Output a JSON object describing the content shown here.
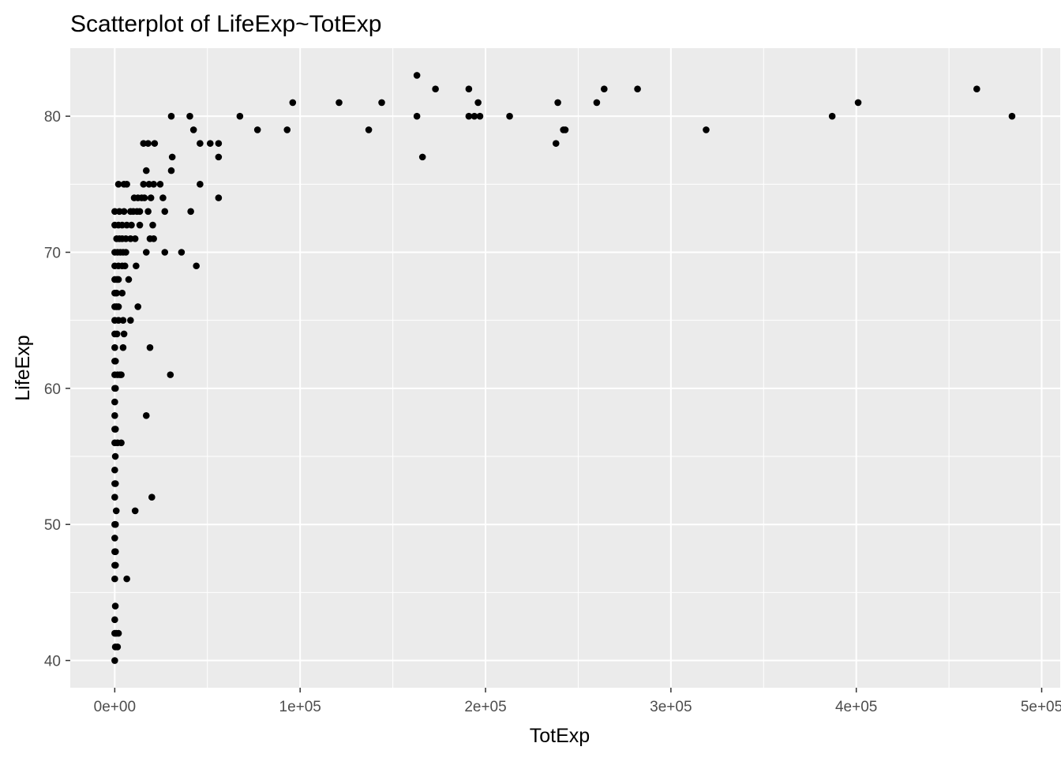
{
  "chart_data": {
    "type": "scatter",
    "title": "Scatterplot of LifeExp~TotExp",
    "xlabel": "TotExp",
    "ylabel": "LifeExp",
    "xlim": [
      -24000,
      510000
    ],
    "ylim": [
      38,
      85
    ],
    "grid": true,
    "background_color": "#EBEBEB",
    "gridline_color": "#FFFFFF",
    "point_color": "#000000",
    "x_ticks": [
      {
        "value": 0,
        "label": "0e+00"
      },
      {
        "value": 100000,
        "label": "1e+05"
      },
      {
        "value": 200000,
        "label": "2e+05"
      },
      {
        "value": 300000,
        "label": "3e+05"
      },
      {
        "value": 400000,
        "label": "4e+05"
      },
      {
        "value": 500000,
        "label": "5e+05"
      }
    ],
    "x_minor_ticks": [
      50000,
      150000,
      250000,
      350000,
      450000
    ],
    "y_ticks": [
      {
        "value": 40,
        "label": "40"
      },
      {
        "value": 50,
        "label": "50"
      },
      {
        "value": 60,
        "label": "60"
      },
      {
        "value": 70,
        "label": "70"
      },
      {
        "value": 80,
        "label": "80"
      }
    ],
    "y_minor_ticks": [
      45,
      55,
      65,
      75
    ],
    "points": [
      [
        0,
        40
      ],
      [
        300,
        41
      ],
      [
        1500,
        41
      ],
      [
        0,
        42
      ],
      [
        800,
        42
      ],
      [
        2000,
        42
      ],
      [
        0,
        43
      ],
      [
        300,
        44
      ],
      [
        0,
        46
      ],
      [
        6500,
        46
      ],
      [
        0,
        47
      ],
      [
        400,
        47
      ],
      [
        0,
        48
      ],
      [
        400,
        48
      ],
      [
        0,
        49
      ],
      [
        0,
        50
      ],
      [
        400,
        50
      ],
      [
        800,
        51
      ],
      [
        11000,
        51
      ],
      [
        20000,
        52
      ],
      [
        0,
        52
      ],
      [
        0,
        53
      ],
      [
        400,
        53
      ],
      [
        0,
        54
      ],
      [
        300,
        55
      ],
      [
        0,
        56
      ],
      [
        1500,
        56
      ],
      [
        3500,
        56
      ],
      [
        0,
        57
      ],
      [
        400,
        57
      ],
      [
        0,
        58
      ],
      [
        17000,
        58
      ],
      [
        0,
        59
      ],
      [
        0,
        60
      ],
      [
        400,
        60
      ],
      [
        0,
        61
      ],
      [
        1500,
        61
      ],
      [
        2800,
        61
      ],
      [
        3500,
        61
      ],
      [
        30000,
        61
      ],
      [
        0,
        62
      ],
      [
        400,
        62
      ],
      [
        0,
        63
      ],
      [
        4500,
        63
      ],
      [
        19000,
        63
      ],
      [
        0,
        64
      ],
      [
        1200,
        64
      ],
      [
        5000,
        64
      ],
      [
        0,
        65
      ],
      [
        2000,
        65
      ],
      [
        4500,
        65
      ],
      [
        8500,
        65
      ],
      [
        0,
        66
      ],
      [
        1000,
        66
      ],
      [
        2000,
        66
      ],
      [
        12500,
        66
      ],
      [
        0,
        67
      ],
      [
        1000,
        67
      ],
      [
        4000,
        67
      ],
      [
        0,
        68
      ],
      [
        1200,
        68
      ],
      [
        2000,
        68
      ],
      [
        7500,
        68
      ],
      [
        0,
        69
      ],
      [
        2000,
        69
      ],
      [
        4000,
        69
      ],
      [
        5500,
        69
      ],
      [
        11500,
        69
      ],
      [
        44000,
        69
      ],
      [
        0,
        70
      ],
      [
        1500,
        70
      ],
      [
        3000,
        70
      ],
      [
        4500,
        70
      ],
      [
        6000,
        70
      ],
      [
        17000,
        70
      ],
      [
        27000,
        70
      ],
      [
        36000,
        70
      ],
      [
        1000,
        71
      ],
      [
        2500,
        71
      ],
      [
        4000,
        71
      ],
      [
        6000,
        71
      ],
      [
        8500,
        71
      ],
      [
        11000,
        71
      ],
      [
        19000,
        71
      ],
      [
        21000,
        71
      ],
      [
        0,
        72
      ],
      [
        2000,
        72
      ],
      [
        4000,
        72
      ],
      [
        6500,
        72
      ],
      [
        9000,
        72
      ],
      [
        13500,
        72
      ],
      [
        20500,
        72
      ],
      [
        0,
        73
      ],
      [
        2500,
        73
      ],
      [
        5000,
        73
      ],
      [
        8500,
        73
      ],
      [
        10000,
        73
      ],
      [
        12000,
        73
      ],
      [
        13500,
        73
      ],
      [
        18000,
        73
      ],
      [
        27000,
        73
      ],
      [
        41000,
        73
      ],
      [
        10500,
        74
      ],
      [
        12500,
        74
      ],
      [
        14500,
        74
      ],
      [
        16000,
        74
      ],
      [
        19500,
        74
      ],
      [
        26000,
        74
      ],
      [
        56000,
        74
      ],
      [
        2000,
        75
      ],
      [
        5000,
        75
      ],
      [
        6500,
        75
      ],
      [
        15500,
        75
      ],
      [
        18500,
        75
      ],
      [
        21000,
        75
      ],
      [
        24500,
        75
      ],
      [
        46000,
        75
      ],
      [
        17000,
        76
      ],
      [
        30500,
        76
      ],
      [
        31000,
        77
      ],
      [
        56000,
        77
      ],
      [
        15500,
        78
      ],
      [
        18000,
        78
      ],
      [
        21500,
        78
      ],
      [
        46000,
        78
      ],
      [
        51500,
        78
      ],
      [
        56000,
        78
      ],
      [
        42500,
        79
      ],
      [
        77000,
        79
      ],
      [
        93000,
        79
      ],
      [
        137000,
        79
      ],
      [
        242000,
        79
      ],
      [
        243000,
        79
      ],
      [
        319000,
        79
      ],
      [
        30500,
        80
      ],
      [
        40500,
        80
      ],
      [
        67500,
        80
      ],
      [
        163000,
        80
      ],
      [
        191000,
        80
      ],
      [
        194000,
        80
      ],
      [
        197000,
        80
      ],
      [
        213000,
        80
      ],
      [
        387000,
        80
      ],
      [
        484000,
        80
      ],
      [
        96000,
        81
      ],
      [
        121000,
        81
      ],
      [
        144000,
        81
      ],
      [
        196000,
        81
      ],
      [
        239000,
        81
      ],
      [
        260000,
        81
      ],
      [
        401000,
        81
      ],
      [
        173000,
        82
      ],
      [
        191000,
        82
      ],
      [
        264000,
        82
      ],
      [
        282000,
        82
      ],
      [
        465000,
        82
      ],
      [
        163000,
        83
      ],
      [
        238000,
        78
      ],
      [
        166000,
        77
      ]
    ]
  }
}
